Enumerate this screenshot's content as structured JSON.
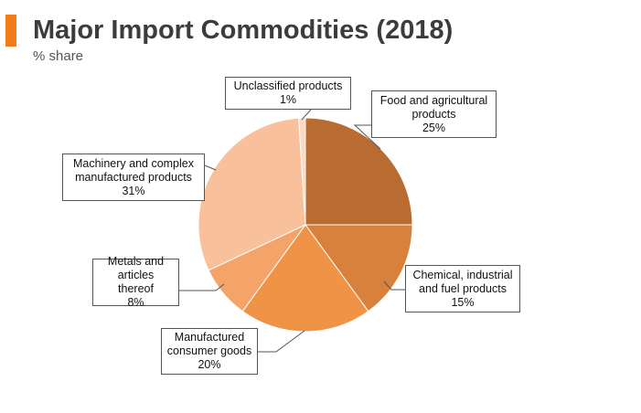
{
  "header": {
    "title": "Major Import Commodities (2018)",
    "subtitle": "% share"
  },
  "colors": {
    "accent": "#f07d1a"
  },
  "chart_data": {
    "type": "pie",
    "title": "Major Import Commodities (2018)",
    "subtitle": "% share",
    "unit": "%",
    "start": "12 o'clock",
    "direction": "clockwise",
    "series": [
      {
        "name": "Food and agricultural products",
        "label_text": "Food and agricultural\nproducts",
        "value_label": "25%",
        "value": 25,
        "color": "#b96c31"
      },
      {
        "name": "Chemical, industrial and fuel products",
        "label_text": "Chemical, industrial\nand fuel products",
        "value_label": "15%",
        "value": 15,
        "color": "#d8813c"
      },
      {
        "name": "Manufactured consumer goods",
        "label_text": "Manufactured\nconsumer goods",
        "value_label": "20%",
        "value": 20,
        "color": "#ef9346"
      },
      {
        "name": "Metals and articles thereof",
        "label_text": "Metals and articles\nthereof",
        "value_label": "8%",
        "value": 8,
        "color": "#f5a469"
      },
      {
        "name": "Machinery and complex manufactured products",
        "label_text": "Machinery and complex\nmanufactured products",
        "value_label": "31%",
        "value": 31,
        "color": "#f8c09b"
      },
      {
        "name": "Unclassified products",
        "label_text": "Unclassified products",
        "value_label": "1%",
        "value": 1,
        "color": "#fbd9c3"
      }
    ]
  }
}
